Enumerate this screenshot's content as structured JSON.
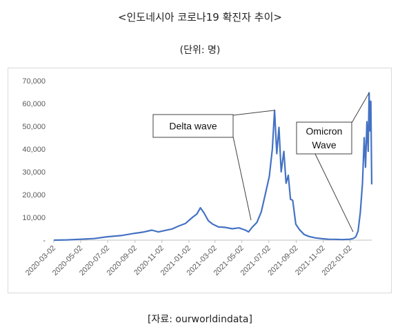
{
  "title": "<인도네시아 코로나19 확진자 추이>",
  "unit": "(단위: 명)",
  "source": "[자료: ourworldindata]",
  "colors": {
    "line": "#4472c4",
    "axis": "#bfbfbf",
    "text": "#595959"
  },
  "chart_data": {
    "type": "line",
    "ylim": [
      0,
      70000
    ],
    "y_ticks": [
      0,
      10000,
      20000,
      30000,
      40000,
      50000,
      60000,
      70000
    ],
    "y_tick_labels": [
      "-",
      "10,000",
      "20,000",
      "30,000",
      "40,000",
      "50,000",
      "60,000",
      "70,000"
    ],
    "x_range": [
      "2020-03-02",
      "2022-02-20"
    ],
    "x_tick_labels": [
      "2020-03-02",
      "2020-05-02",
      "2020-07-02",
      "2020-09-02",
      "2020-11-02",
      "2021-01-02",
      "2021-03-02",
      "2021-05-02",
      "2021-07-02",
      "2021-09-02",
      "2021-11-02",
      "2022-01-02"
    ],
    "grid": false,
    "series": [
      {
        "x": [
          "2020-03-02",
          "2020-04-01",
          "2020-05-01",
          "2020-06-01",
          "2020-07-01",
          "2020-08-01",
          "2020-09-01",
          "2020-09-20",
          "2020-10-10",
          "2020-10-25",
          "2020-11-10",
          "2020-11-25",
          "2020-12-10",
          "2020-12-25",
          "2021-01-10",
          "2021-01-20",
          "2021-01-28",
          "2021-02-05",
          "2021-02-15",
          "2021-02-25",
          "2021-03-10",
          "2021-03-25",
          "2021-04-10",
          "2021-04-25",
          "2021-05-10",
          "2021-05-17",
          "2021-05-25",
          "2021-06-05",
          "2021-06-15",
          "2021-06-25",
          "2021-07-03",
          "2021-07-10",
          "2021-07-15",
          "2021-07-20",
          "2021-07-25",
          "2021-07-30",
          "2021-08-05",
          "2021-08-10",
          "2021-08-15",
          "2021-08-20",
          "2021-08-25",
          "2021-09-01",
          "2021-09-10",
          "2021-09-20",
          "2021-10-01",
          "2021-10-15",
          "2021-11-01",
          "2021-11-15",
          "2021-12-01",
          "2021-12-15",
          "2022-01-01",
          "2022-01-10",
          "2022-01-15",
          "2022-01-20",
          "2022-01-25",
          "2022-01-30",
          "2022-02-03",
          "2022-02-06",
          "2022-02-09",
          "2022-02-12",
          "2022-02-14",
          "2022-02-16",
          "2022-02-18",
          "2022-02-20"
        ],
        "values": [
          0,
          120,
          380,
          700,
          1500,
          2000,
          3000,
          3500,
          4400,
          3600,
          4300,
          4900,
          6200,
          7300,
          10000,
          11500,
          14200,
          12000,
          8500,
          7000,
          5800,
          5600,
          5000,
          5400,
          4400,
          3600,
          5600,
          7800,
          12500,
          21000,
          28000,
          40000,
          57000,
          38000,
          49500,
          30000,
          39000,
          25000,
          28500,
          18000,
          17500,
          7000,
          4500,
          2500,
          1600,
          1000,
          600,
          400,
          350,
          250,
          400,
          800,
          1500,
          4000,
          12000,
          25000,
          45000,
          32000,
          52000,
          39000,
          64700,
          48000,
          61000,
          24500
        ]
      }
    ],
    "annotations": [
      {
        "text": "Delta wave",
        "x": "2021-07-15",
        "y": 57000
      },
      {
        "lines": [
          "Omicron",
          "Wave"
        ],
        "x": "2022-02-14",
        "y": 64700
      }
    ]
  }
}
